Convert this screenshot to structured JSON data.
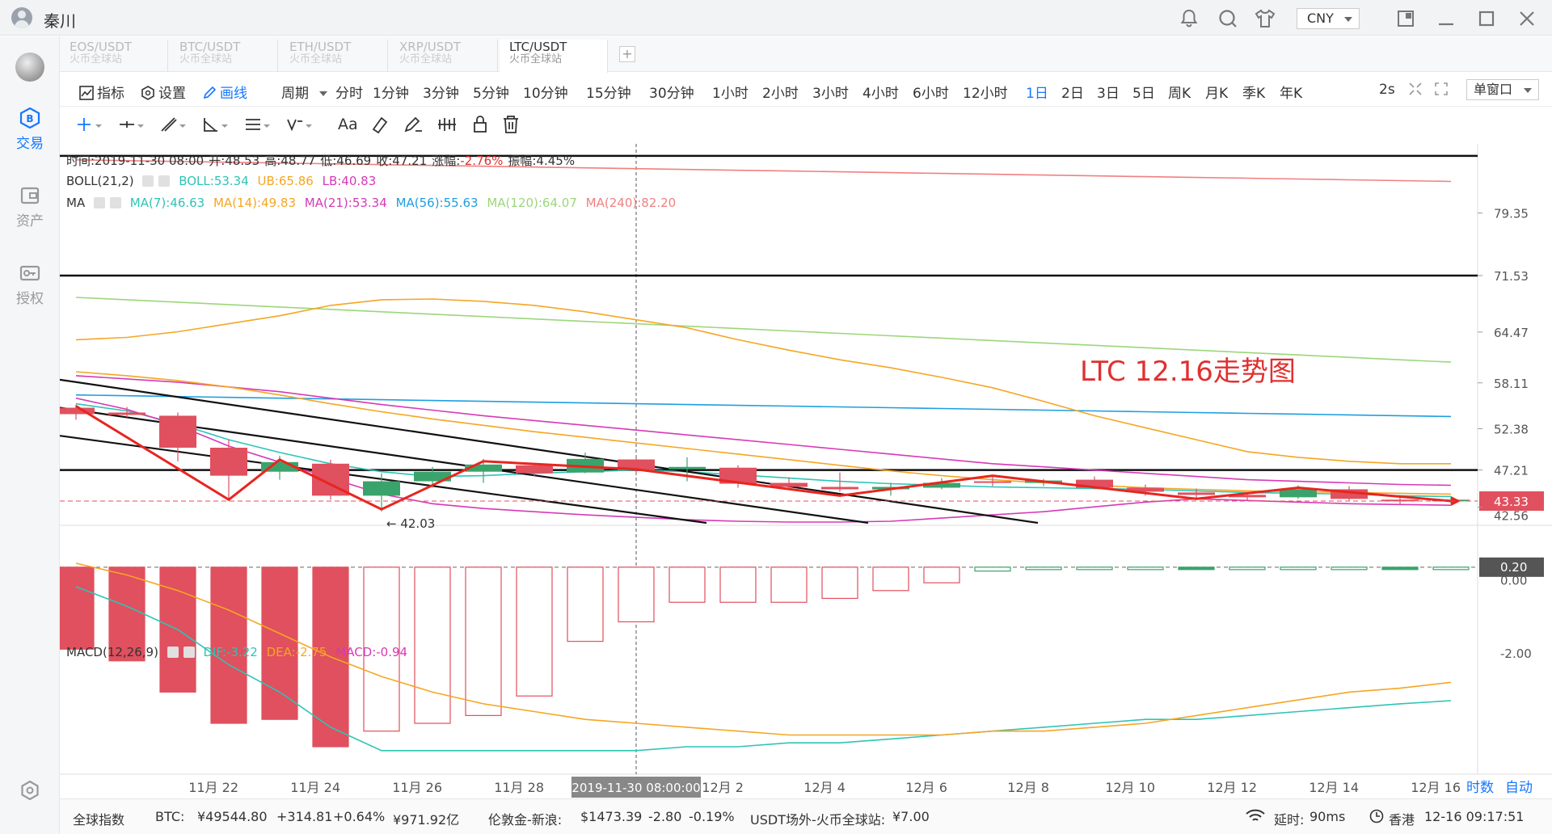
{
  "titlebar": {
    "username": "秦川",
    "currency": "CNY",
    "icons": [
      "bell-icon",
      "search-icon",
      "shirt-icon",
      "restore-window-icon",
      "minimize-icon",
      "maximize-icon",
      "close-icon"
    ]
  },
  "sidebar": {
    "items": [
      {
        "label": "交易",
        "icon": "trade-icon",
        "active": true
      },
      {
        "label": "资产",
        "icon": "wallet-icon",
        "active": false
      },
      {
        "label": "授权",
        "icon": "key-icon",
        "active": false
      }
    ],
    "bottom_icon": "settings-icon"
  },
  "pair_tabs": [
    {
      "name": "EOS/USDT",
      "exchange": "火币全球站",
      "active": false
    },
    {
      "name": "BTC/USDT",
      "exchange": "火币全球站",
      "active": false
    },
    {
      "name": "ETH/USDT",
      "exchange": "火币全球站",
      "active": false
    },
    {
      "name": "XRP/USDT",
      "exchange": "火币全球站",
      "active": false
    },
    {
      "name": "LTC/USDT",
      "exchange": "火币全球站",
      "active": true
    }
  ],
  "add_tab": "+",
  "toolbar": {
    "indicator": "指标",
    "settings": "设置",
    "draw": "画线",
    "period_label": "周期",
    "periods": [
      "分时",
      "1分钟",
      "3分钟",
      "5分钟",
      "10分钟",
      "15分钟",
      "30分钟",
      "1小时",
      "2小时",
      "3小时",
      "4小时",
      "6小时",
      "12小时",
      "1日",
      "2日",
      "3日",
      "5日",
      "周K",
      "月K",
      "季K",
      "年K"
    ],
    "active_period": "1日",
    "refresh": "2s",
    "window_mode": "单窗口"
  },
  "drawtools": {
    "text_tool": "Aa"
  },
  "ohlc_line": {
    "time": "时间:2019-11-30 08:00",
    "open": "开:48.53",
    "high": "高:48.77",
    "low": "低:46.69",
    "close": "收:47.21",
    "change": "涨幅:",
    "change_val": "-2.76%",
    "amplitude": "振幅:4.45%"
  },
  "boll_line": {
    "name": "BOLL(21,2)",
    "boll": "BOLL:53.34",
    "ub": "UB:65.86",
    "lb": "LB:40.83"
  },
  "ma_line": {
    "name": "MA",
    "ma7": "MA(7):46.63",
    "ma14": "MA(14):49.83",
    "ma21": "MA(21):53.34",
    "ma56": "MA(56):55.63",
    "ma120": "MA(120):64.07",
    "ma240": "MA(240):82.20"
  },
  "macd_line": {
    "name": "MACD(12,26,9)",
    "dif": "DIF:-3.22",
    "dea": "DEA:-2.75",
    "macd": "MACD:-0.94"
  },
  "annotation": "LTC 12.16走势图",
  "low_marker": "42.03",
  "colors": {
    "up": "#3aa36b",
    "down": "#e0505e",
    "accent": "#1677ff",
    "ma7": "#2ec4b6",
    "ma14": "#f5a623",
    "ma21": "#d63ab6",
    "ma56": "#1f9ee0",
    "ma120": "#9cd67a",
    "ma240": "#f08080"
  },
  "chart_data": {
    "type": "candlestick",
    "price_axis_ticks": [
      "79.35",
      "71.53",
      "64.47",
      "58.11",
      "52.38",
      "47.21",
      "43.33",
      "42.56"
    ],
    "macd_axis_ticks": [
      "0.20",
      "0.00",
      "-2.00"
    ],
    "current_price": "43.33",
    "x_ticks": [
      "11月 22",
      "11月 24",
      "11月 26",
      "11月 28",
      "2019-11-30 08:00:00",
      "12月 2",
      "12月 4",
      "12月 6",
      "12月 8",
      "12月 10",
      "12月 12",
      "12月 14",
      "12月 16"
    ],
    "candles": [
      {
        "o": 55.0,
        "c": 54.2,
        "h": 55.4,
        "l": 53.5
      },
      {
        "o": 54.4,
        "c": 54.1,
        "h": 55.1,
        "l": 53.8
      },
      {
        "o": 54.0,
        "c": 50.0,
        "h": 54.4,
        "l": 48.3
      },
      {
        "o": 50.0,
        "c": 46.5,
        "h": 51.0,
        "l": 43.6
      },
      {
        "o": 47.0,
        "c": 48.2,
        "h": 49.0,
        "l": 46.0
      },
      {
        "o": 48.0,
        "c": 44.0,
        "h": 48.5,
        "l": 43.5
      },
      {
        "o": 44.0,
        "c": 45.8,
        "h": 46.8,
        "l": 42.03
      },
      {
        "o": 45.8,
        "c": 47.0,
        "h": 47.6,
        "l": 45.0
      },
      {
        "o": 47.0,
        "c": 47.9,
        "h": 48.6,
        "l": 45.6
      },
      {
        "o": 47.8,
        "c": 46.8,
        "h": 48.1,
        "l": 46.4
      },
      {
        "o": 46.9,
        "c": 48.6,
        "h": 49.4,
        "l": 46.8
      },
      {
        "o": 48.53,
        "c": 47.21,
        "h": 48.77,
        "l": 46.69
      },
      {
        "o": 47.3,
        "c": 47.6,
        "h": 48.8,
        "l": 45.8
      },
      {
        "o": 47.5,
        "c": 45.5,
        "h": 47.8,
        "l": 45.0
      },
      {
        "o": 45.6,
        "c": 45.1,
        "h": 46.3,
        "l": 44.8
      },
      {
        "o": 45.1,
        "c": 44.8,
        "h": 46.9,
        "l": 44.5
      },
      {
        "o": 44.8,
        "c": 45.1,
        "h": 45.6,
        "l": 44.0
      },
      {
        "o": 45.0,
        "c": 45.6,
        "h": 46.2,
        "l": 44.8
      },
      {
        "o": 45.8,
        "c": 45.6,
        "h": 46.4,
        "l": 45.2
      },
      {
        "o": 45.6,
        "c": 45.9,
        "h": 46.1,
        "l": 45.2
      },
      {
        "o": 46.0,
        "c": 45.0,
        "h": 46.4,
        "l": 44.8
      },
      {
        "o": 45.0,
        "c": 44.5,
        "h": 45.4,
        "l": 44.0
      },
      {
        "o": 44.4,
        "c": 44.1,
        "h": 44.9,
        "l": 43.7
      },
      {
        "o": 44.1,
        "c": 43.8,
        "h": 44.4,
        "l": 43.4
      },
      {
        "o": 43.8,
        "c": 44.8,
        "h": 45.3,
        "l": 43.6
      },
      {
        "o": 44.8,
        "c": 43.6,
        "h": 45.2,
        "l": 43.4
      },
      {
        "o": 43.5,
        "c": 43.33,
        "h": 43.9,
        "l": 42.9
      },
      {
        "o": 43.3,
        "c": 43.5,
        "h": 43.8,
        "l": 43.0
      }
    ],
    "macd_hist": [
      -1.9,
      -2.2,
      -3.0,
      -3.8,
      -3.7,
      -4.4,
      -4.0,
      -3.8,
      -3.6,
      -3.1,
      -1.7,
      -1.2,
      -0.7,
      -0.7,
      -0.7,
      -0.6,
      -0.4,
      -0.2,
      0.1,
      0.2,
      0.2,
      0.2,
      0.2,
      0.2,
      0.2,
      0.2,
      0.2,
      0.2
    ],
    "horizontal_lines": [
      86.5,
      71.53,
      47.21
    ],
    "ylim": [
      40.5,
      88
    ]
  },
  "macd_axis_tail": "时数",
  "macd_auto": "自动",
  "footer": {
    "global_index": "全球指数",
    "btc_label": "BTC:",
    "btc_price": "¥49544.80",
    "btc_change": "+314.81",
    "btc_pct": "+0.64%",
    "btc_volume": "¥971.92亿",
    "gold_label": "伦敦金-新浪:",
    "gold_price": "$1473.39",
    "gold_change": "-2.80",
    "gold_pct": "-0.19%",
    "usdt_label": "USDT场外-火币全球站:",
    "usdt_price": "¥7.00",
    "latency_label": "延时:",
    "latency": "90ms",
    "location": "香港",
    "datetime": "12-16 09:17:51"
  }
}
